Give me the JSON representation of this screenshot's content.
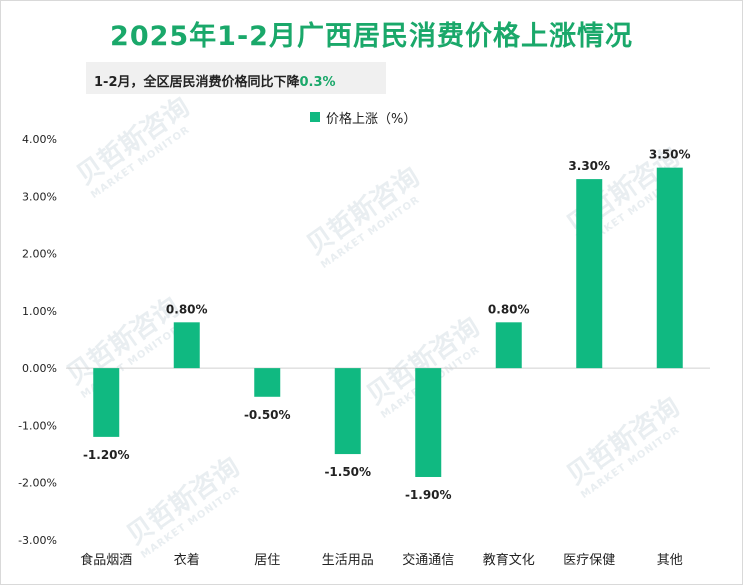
{
  "title": "2025年1-2月广西居民消费价格上涨情况",
  "note": {
    "prefix": "1-2月，全区居民消费价格同比下降",
    "value": "0.3%"
  },
  "watermark": {
    "cn": "贝哲斯咨询",
    "en": "MARKET MONITOR"
  },
  "colors": {
    "bar": "#10b981",
    "title": "#1aa86a"
  },
  "chart_data": {
    "type": "bar",
    "categories": [
      "食品烟酒",
      "衣着",
      "居住",
      "生活用品",
      "交通通信",
      "教育文化",
      "医疗保健",
      "其他"
    ],
    "series": [
      {
        "name": "价格上涨（%）",
        "values": [
          -1.2,
          0.8,
          -0.5,
          -1.5,
          -1.9,
          0.8,
          3.3,
          3.5
        ],
        "labels": [
          "-1.20%",
          "0.80%",
          "-0.50%",
          "-1.50%",
          "-1.90%",
          "0.80%",
          "3.30%",
          "3.50%"
        ]
      }
    ],
    "ylim": [
      -3,
      4
    ],
    "yticks": [
      "-3.00%",
      "-2.00%",
      "-1.00%",
      "0.00%",
      "1.00%",
      "2.00%",
      "3.00%",
      "4.00%"
    ],
    "grid": false,
    "legend": "top-center"
  }
}
